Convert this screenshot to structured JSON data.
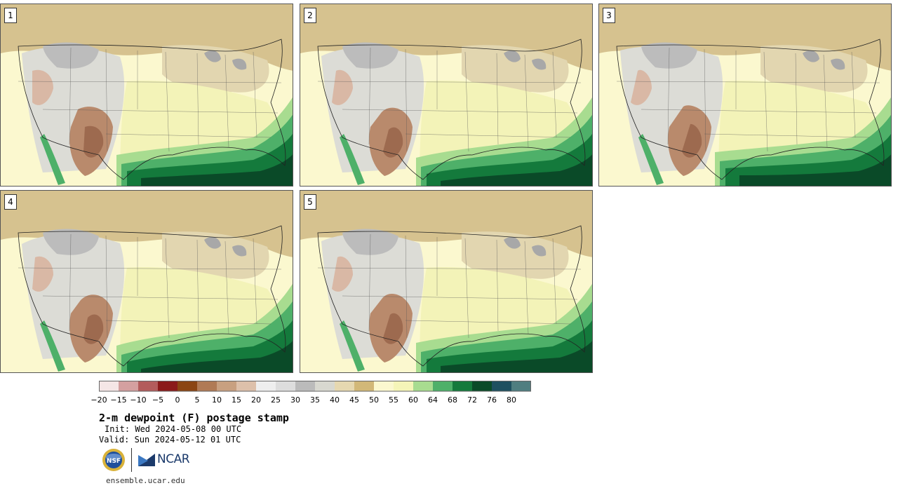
{
  "panels": [
    {
      "label": "1"
    },
    {
      "label": "2"
    },
    {
      "label": "3"
    },
    {
      "label": "4"
    },
    {
      "label": "5"
    }
  ],
  "colorbar": {
    "colors": [
      "#f5e6e6",
      "#d4a0a0",
      "#b35c5c",
      "#8b1a1a",
      "#8b4513",
      "#b07a55",
      "#c8a080",
      "#ddc0aa",
      "#eeeeee",
      "#dddddd",
      "#bbbbbb",
      "#d8d8d0",
      "#e6d8b0",
      "#d2b878",
      "#fbf8cf",
      "#f5f5b8",
      "#a8dc90",
      "#4eb069",
      "#147a3c",
      "#0a4a28",
      "#1e5060",
      "#4f7e80"
    ],
    "tick_labels": [
      "−20",
      "−15",
      "−10",
      "−5",
      "0",
      "5",
      "10",
      "15",
      "20",
      "25",
      "30",
      "35",
      "40",
      "45",
      "50",
      "55",
      "60",
      "64",
      "68",
      "72",
      "76",
      "80"
    ]
  },
  "title": "2-m dewpoint (F) postage stamp",
  "init": "Init: Wed 2024-05-08 00 UTC",
  "valid": "Valid: Sun 2024-05-12 01 UTC",
  "logos": {
    "nsf": "NSF",
    "ncar": "NCAR"
  },
  "url": "ensemble.ucar.edu"
}
